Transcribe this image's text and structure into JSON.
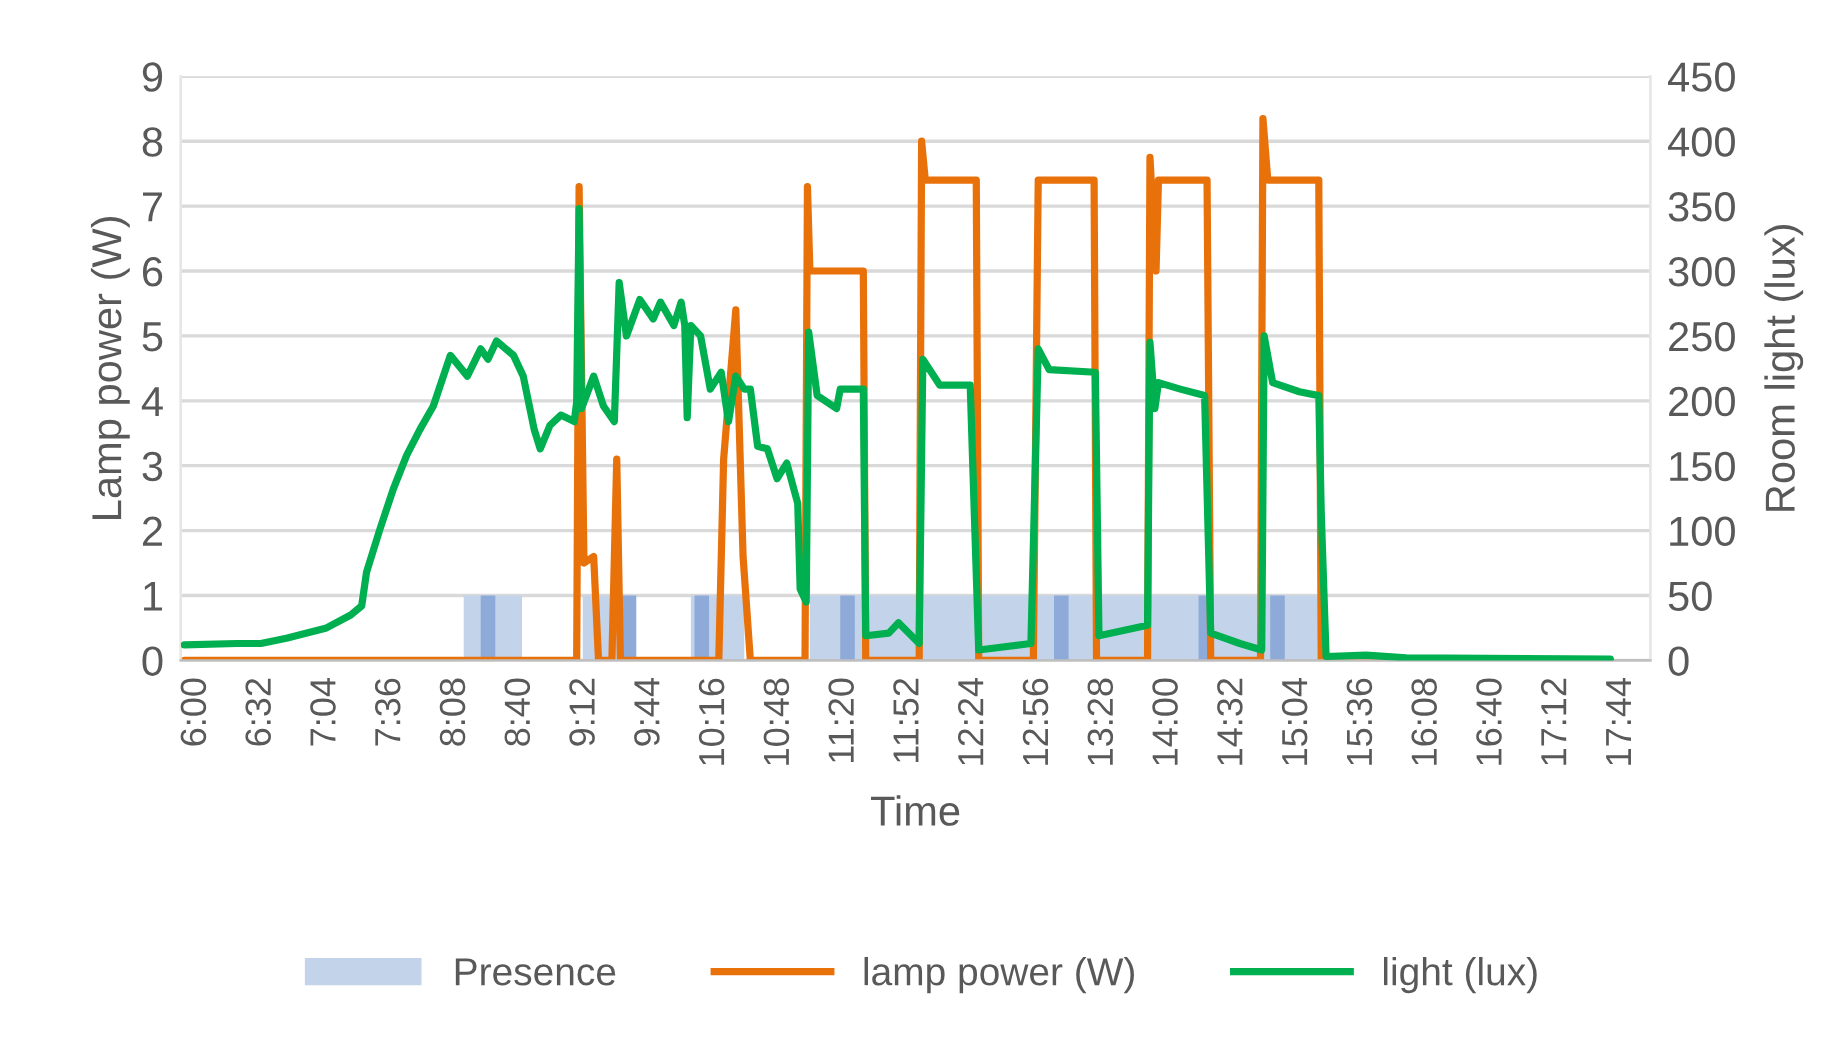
{
  "chart_data": {
    "type": "line",
    "xlabel": "Time",
    "ylabel": "Lamp power (W)",
    "y2label": "Room light (lux)",
    "xlim": [
      5.87,
      17.97
    ],
    "ylim": [
      0,
      9
    ],
    "yticks": [
      0,
      1,
      2,
      3,
      4,
      5,
      6,
      7,
      8,
      9
    ],
    "y2lim": [
      0,
      450
    ],
    "y2ticks": [
      0,
      50,
      100,
      150,
      200,
      250,
      300,
      350,
      400,
      450
    ],
    "xticks": [
      {
        "value": 6.0,
        "label": "6:00"
      },
      {
        "value": 6.5333,
        "label": "6:32"
      },
      {
        "value": 7.0667,
        "label": "7:04"
      },
      {
        "value": 7.6,
        "label": "7:36"
      },
      {
        "value": 8.1333,
        "label": "8:08"
      },
      {
        "value": 8.6667,
        "label": "8:40"
      },
      {
        "value": 9.2,
        "label": "9:12"
      },
      {
        "value": 9.7333,
        "label": "9:44"
      },
      {
        "value": 10.2667,
        "label": "10:16"
      },
      {
        "value": 10.8,
        "label": "10:48"
      },
      {
        "value": 11.3333,
        "label": "11:20"
      },
      {
        "value": 11.8667,
        "label": "11:52"
      },
      {
        "value": 12.4,
        "label": "12:24"
      },
      {
        "value": 12.9333,
        "label": "12:56"
      },
      {
        "value": 13.4667,
        "label": "13:28"
      },
      {
        "value": 14.0,
        "label": "14:00"
      },
      {
        "value": 14.5333,
        "label": "14:32"
      },
      {
        "value": 15.0667,
        "label": "15:04"
      },
      {
        "value": 15.6,
        "label": "15:36"
      },
      {
        "value": 16.1333,
        "label": "16:08"
      },
      {
        "value": 16.6667,
        "label": "16:40"
      },
      {
        "value": 17.2,
        "label": "17:12"
      },
      {
        "value": 17.7333,
        "label": "17:44"
      }
    ],
    "grid": "y",
    "legend": "bottom",
    "marker": "none",
    "line_style": "solid",
    "series": [
      {
        "name": "Presence",
        "type": "area",
        "axis": "y",
        "color": "#c3d3ea",
        "x": [
          8.2,
          8.2,
          8.68,
          8.68,
          9.18,
          9.18,
          9.62,
          9.62,
          10.07,
          10.07,
          10.51,
          10.51,
          11.05,
          11.05,
          15.25,
          15.25
        ],
        "values": [
          0,
          1,
          1,
          0,
          0,
          1,
          1,
          0,
          0,
          1,
          1,
          0,
          0,
          1,
          1,
          0
        ]
      },
      {
        "type": "area",
        "axis": "y",
        "color": "#8eaad8",
        "x": [
          8.34,
          8.34,
          8.46,
          8.46,
          9.5,
          9.5,
          9.62,
          9.62,
          10.1,
          10.1,
          10.22,
          10.22,
          11.3,
          11.3,
          11.42,
          11.42,
          13.06,
          13.06,
          13.18,
          13.18,
          14.25,
          14.25,
          14.37,
          14.37,
          14.84,
          14.84,
          14.96,
          14.96
        ],
        "values": [
          0,
          1,
          1,
          0,
          0,
          1,
          1,
          0,
          0,
          1,
          1,
          0,
          0,
          1,
          1,
          0,
          0,
          1,
          1,
          0,
          0,
          1,
          1,
          0,
          0,
          1,
          1,
          0
        ]
      },
      {
        "name": "lamp power (W)",
        "type": "line",
        "axis": "y",
        "color": "#e8710a",
        "x": [
          5.9,
          9.13,
          9.15,
          9.19,
          9.27,
          9.31,
          9.42,
          9.46,
          9.49,
          10.3,
          10.34,
          10.44,
          10.5,
          10.56,
          11.01,
          11.03,
          11.05,
          11.49,
          11.51,
          11.95,
          11.97,
          12.0,
          12.42,
          12.44,
          12.89,
          12.93,
          13.39,
          13.41,
          13.83,
          13.85,
          13.9,
          13.92,
          14.32,
          14.35,
          14.76,
          14.78,
          14.82,
          15.24,
          15.26,
          17.64
        ],
        "values": [
          0,
          0,
          7.3,
          1.5,
          1.6,
          0,
          0,
          3.1,
          0,
          0,
          3.1,
          5.4,
          1.6,
          0,
          0,
          7.3,
          6.0,
          6.0,
          0,
          0,
          8.0,
          7.4,
          7.4,
          0,
          0,
          7.4,
          7.4,
          0,
          0,
          7.75,
          6.0,
          7.4,
          7.4,
          0,
          0,
          8.35,
          7.4,
          7.4,
          0,
          0
        ]
      },
      {
        "name": "light (lux)",
        "axis": "y2",
        "color": "#00b050",
        "x": [
          5.9,
          6.33,
          6.53,
          6.74,
          7.07,
          7.27,
          7.36,
          7.4,
          7.51,
          7.62,
          7.73,
          7.84,
          7.95,
          8.09,
          8.23,
          8.34,
          8.4,
          8.47,
          8.61,
          8.69,
          8.78,
          8.83,
          8.91,
          9.0,
          9.11,
          9.13,
          9.15,
          9.17,
          9.27,
          9.35,
          9.44,
          9.48,
          9.54,
          9.65,
          9.76,
          9.82,
          9.93,
          9.99,
          10.02,
          10.04,
          10.07,
          10.15,
          10.23,
          10.32,
          10.38,
          10.44,
          10.51,
          10.56,
          10.62,
          10.7,
          10.78,
          10.86,
          10.95,
          10.97,
          11.02,
          11.04,
          11.11,
          11.27,
          11.3,
          11.49,
          11.51,
          11.7,
          11.78,
          11.95,
          11.98,
          12.12,
          12.37,
          12.44,
          12.87,
          12.93,
          13.02,
          13.4,
          13.43,
          13.83,
          13.85,
          13.89,
          13.92,
          14.1,
          14.3,
          14.35,
          14.59,
          14.77,
          14.79,
          14.86,
          15.08,
          15.24,
          15.26,
          15.3,
          15.63,
          15.96,
          17.64
        ],
        "values": [
          12,
          13,
          13,
          17,
          25,
          35,
          42,
          68,
          101,
          132,
          158,
          178,
          196,
          235,
          219,
          240,
          232,
          246,
          235,
          219,
          178,
          163,
          181,
          189,
          184,
          199,
          348,
          194,
          219,
          196,
          184,
          291,
          250,
          278,
          263,
          276,
          258,
          276,
          258,
          187,
          258,
          250,
          209,
          222,
          184,
          219,
          209,
          209,
          165,
          163,
          140,
          152,
          121,
          55,
          45,
          253,
          204,
          194,
          209,
          209,
          19,
          21,
          29,
          13,
          232,
          212,
          212,
          8,
          13,
          240,
          224,
          222,
          19,
          27,
          245,
          194,
          214,
          209,
          204,
          21,
          13,
          8,
          250,
          214,
          207,
          204,
          114,
          3,
          4,
          2,
          1
        ]
      }
    ]
  }
}
